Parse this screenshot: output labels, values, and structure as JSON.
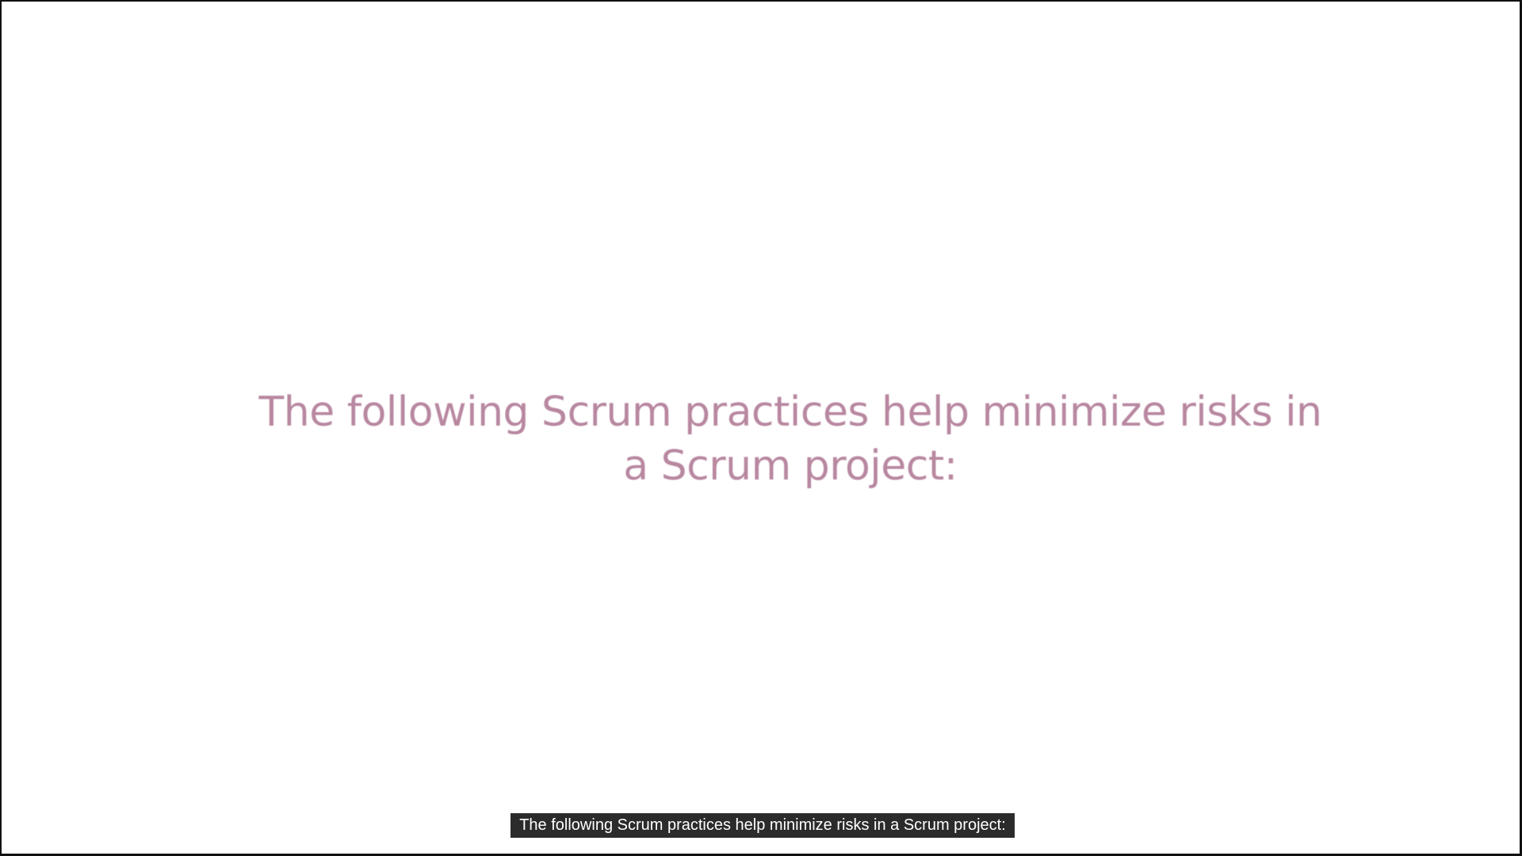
{
  "slide": {
    "title_line1": "The following Scrum practices help minimize risks in",
    "title_line2": "a Scrum project:"
  },
  "subtitle": {
    "text": "The following Scrum practices help minimize risks in a Scrum project:"
  },
  "colors": {
    "title_text": "#b27d98",
    "caption_background": "#2b2b2b",
    "caption_text": "#ffffff",
    "frame_border": "#111111"
  }
}
